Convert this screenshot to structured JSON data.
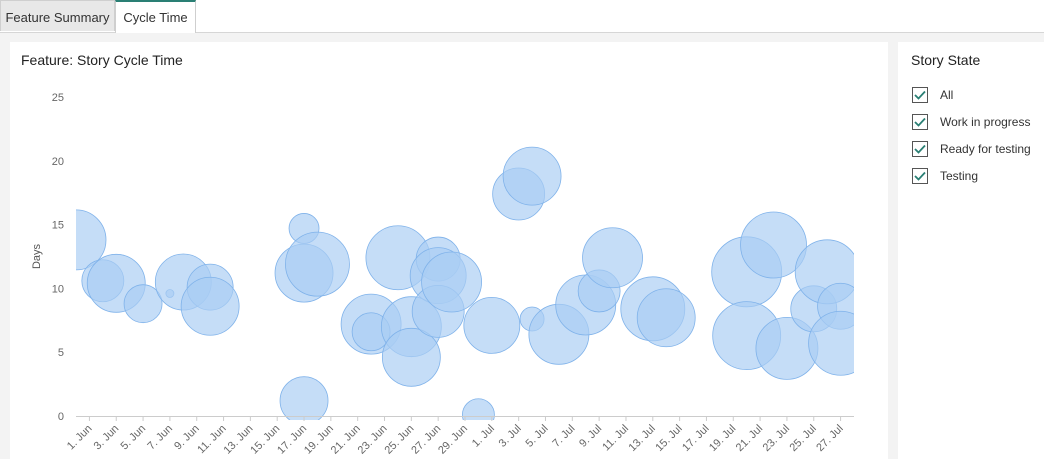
{
  "tabs": [
    {
      "label": "Feature Summary",
      "active": false
    },
    {
      "label": "Cycle Time",
      "active": true
    }
  ],
  "chart": {
    "title": "Feature: Story Cycle Time"
  },
  "filter_panel": {
    "title": "Story State",
    "options": [
      {
        "label": "All",
        "checked": true
      },
      {
        "label": "Work in progress",
        "checked": true
      },
      {
        "label": "Ready for testing",
        "checked": true
      },
      {
        "label": "Testing",
        "checked": true
      }
    ]
  },
  "colors": {
    "bubble_fill": "#a9cdf3",
    "bubble_stroke": "#7fb2ea",
    "tab_accent": "#2a7f74",
    "check": "#2a7f74"
  },
  "chart_data": {
    "type": "scatter",
    "variant": "bubble",
    "title": "",
    "xlabel": "",
    "ylabel": "Days",
    "ylim": [
      0,
      25
    ],
    "yticks": [
      0,
      5,
      10,
      15,
      20,
      25
    ],
    "xlim": [
      "2024-05-31",
      "2024-07-28"
    ],
    "xticks": [
      "1. Jun",
      "3. Jun",
      "5. Jun",
      "7. Jun",
      "9. Jun",
      "11. Jun",
      "13. Jun",
      "15. Jun",
      "17. Jun",
      "19. Jun",
      "21. Jun",
      "23. Jun",
      "25. Jun",
      "27. Jun",
      "29. Jun",
      "1. Jul",
      "3. Jul",
      "5. Jul",
      "7. Jul",
      "9. Jul",
      "11. Jul",
      "13. Jul",
      "15. Jul",
      "17. Jul",
      "19. Jul",
      "21. Jul",
      "23. Jul",
      "25. Jul",
      "27. Jul"
    ],
    "grid": false,
    "legend": "none",
    "points": [
      {
        "x": "2024-05-31",
        "y": 13.8,
        "size": 30
      },
      {
        "x": "2024-06-02",
        "y": 10.6,
        "size": 21
      },
      {
        "x": "2024-06-03",
        "y": 10.4,
        "size": 29
      },
      {
        "x": "2024-06-05",
        "y": 8.8,
        "size": 19
      },
      {
        "x": "2024-06-07",
        "y": 9.6,
        "size": 4
      },
      {
        "x": "2024-06-08",
        "y": 10.5,
        "size": 28
      },
      {
        "x": "2024-06-10",
        "y": 10.1,
        "size": 23
      },
      {
        "x": "2024-06-10",
        "y": 8.6,
        "size": 29
      },
      {
        "x": "2024-06-17",
        "y": 14.7,
        "size": 15
      },
      {
        "x": "2024-06-17",
        "y": 11.2,
        "size": 29
      },
      {
        "x": "2024-06-18",
        "y": 11.9,
        "size": 32
      },
      {
        "x": "2024-06-17",
        "y": 1.2,
        "size": 24
      },
      {
        "x": "2024-06-22",
        "y": 7.2,
        "size": 30
      },
      {
        "x": "2024-06-22",
        "y": 6.6,
        "size": 19
      },
      {
        "x": "2024-06-24",
        "y": 12.4,
        "size": 32
      },
      {
        "x": "2024-06-25",
        "y": 7.0,
        "size": 30
      },
      {
        "x": "2024-06-25",
        "y": 4.6,
        "size": 29
      },
      {
        "x": "2024-06-27",
        "y": 12.3,
        "size": 22
      },
      {
        "x": "2024-06-27",
        "y": 11.0,
        "size": 28
      },
      {
        "x": "2024-06-27",
        "y": 8.2,
        "size": 26
      },
      {
        "x": "2024-06-28",
        "y": 10.5,
        "size": 30
      },
      {
        "x": "2024-06-30",
        "y": 0.1,
        "size": 16
      },
      {
        "x": "2024-07-01",
        "y": 7.1,
        "size": 28
      },
      {
        "x": "2024-07-03",
        "y": 17.4,
        "size": 26
      },
      {
        "x": "2024-07-04",
        "y": 18.8,
        "size": 29
      },
      {
        "x": "2024-07-04",
        "y": 7.6,
        "size": 12
      },
      {
        "x": "2024-07-06",
        "y": 6.4,
        "size": 30
      },
      {
        "x": "2024-07-08",
        "y": 8.7,
        "size": 30
      },
      {
        "x": "2024-07-09",
        "y": 9.8,
        "size": 21
      },
      {
        "x": "2024-07-10",
        "y": 12.4,
        "size": 30
      },
      {
        "x": "2024-07-13",
        "y": 8.4,
        "size": 32
      },
      {
        "x": "2024-07-14",
        "y": 7.7,
        "size": 29
      },
      {
        "x": "2024-07-20",
        "y": 11.3,
        "size": 35
      },
      {
        "x": "2024-07-20",
        "y": 6.3,
        "size": 34
      },
      {
        "x": "2024-07-22",
        "y": 13.4,
        "size": 33
      },
      {
        "x": "2024-07-23",
        "y": 5.3,
        "size": 31
      },
      {
        "x": "2024-07-25",
        "y": 8.4,
        "size": 23
      },
      {
        "x": "2024-07-26",
        "y": 11.3,
        "size": 32
      },
      {
        "x": "2024-07-27",
        "y": 8.6,
        "size": 23
      },
      {
        "x": "2024-07-27",
        "y": 5.7,
        "size": 32
      }
    ]
  }
}
